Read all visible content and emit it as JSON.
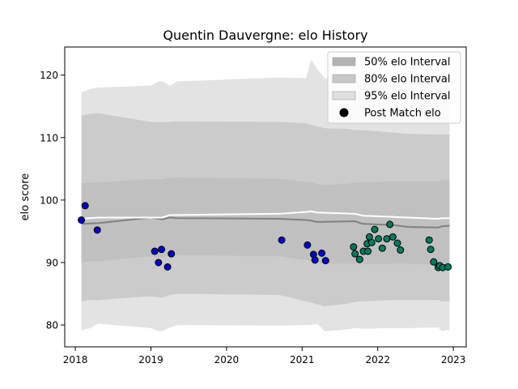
{
  "chart_data": {
    "type": "scatter",
    "title": "Quentin Dauvergne: elo History",
    "xlabel": "",
    "ylabel": "elo score",
    "xlim": [
      2017.86,
      2023.17
    ],
    "ylim": [
      76.5,
      124.5
    ],
    "x_ticks": [
      2018,
      2019,
      2020,
      2021,
      2022,
      2023
    ],
    "x_tick_labels": [
      "2018",
      "2019",
      "2020",
      "2021",
      "2022",
      "2023"
    ],
    "y_ticks": [
      80,
      90,
      100,
      110,
      120
    ],
    "y_tick_labels": [
      "80",
      "90",
      "100",
      "110",
      "120"
    ],
    "grid": false,
    "legend_position": "top-right",
    "legend": [
      {
        "label": "50% elo Interval",
        "kind": "patch",
        "color": "#b3b3b3"
      },
      {
        "label": "80% elo Interval",
        "kind": "patch",
        "color": "#c8c8c8"
      },
      {
        "label": "95% elo Interval",
        "kind": "patch",
        "color": "#e0e0e0"
      },
      {
        "label": "Post Match elo",
        "kind": "marker",
        "color": "#000000"
      }
    ],
    "bands": [
      {
        "name": "95% elo Interval",
        "color": "#e3e3e3",
        "x": [
          2018.08,
          2018.2,
          2018.3,
          2019.0,
          2019.1,
          2019.15,
          2019.25,
          2019.35,
          2020.7,
          2021.05,
          2021.12,
          2021.2,
          2021.3,
          2021.6,
          2021.7,
          2021.8,
          2022.2,
          2022.4,
          2022.8,
          2022.85,
          2022.9,
          2022.95
        ],
        "upper": [
          117.2,
          117.8,
          118.0,
          118.3,
          119.0,
          119.0,
          118.3,
          119.0,
          119.6,
          119.5,
          122.5,
          121.0,
          119.5,
          119.4,
          119.2,
          119.0,
          119.2,
          119.2,
          118.8,
          118.8,
          118.6,
          118.6
        ],
        "lower": [
          79.2,
          79.5,
          80.2,
          79.5,
          79.0,
          79.0,
          79.6,
          80.0,
          79.9,
          80.0,
          80.0,
          80.2,
          79.0,
          79.3,
          79.5,
          79.4,
          79.5,
          79.5,
          79.6,
          79.0,
          79.2,
          79.2
        ]
      },
      {
        "name": "80% elo Interval",
        "color": "#cbcbcb",
        "x": [
          2018.08,
          2018.2,
          2018.3,
          2019.0,
          2019.1,
          2019.15,
          2019.25,
          2019.35,
          2020.7,
          2021.05,
          2021.12,
          2021.2,
          2021.3,
          2021.6,
          2021.7,
          2021.8,
          2022.2,
          2022.4,
          2022.8,
          2022.85,
          2022.9,
          2022.95
        ],
        "upper": [
          113.5,
          113.8,
          113.9,
          112.5,
          112.5,
          112.5,
          112.5,
          112.6,
          112.5,
          112.3,
          112.0,
          111.8,
          111.5,
          111.4,
          111.2,
          111.2,
          110.8,
          110.6,
          110.5,
          110.5,
          110.5,
          110.5
        ],
        "lower": [
          83.8,
          84.0,
          84.0,
          84.6,
          84.4,
          84.4,
          84.8,
          85.0,
          84.8,
          83.8,
          83.6,
          83.3,
          83.0,
          83.4,
          83.7,
          83.8,
          84.0,
          84.0,
          84.0,
          83.8,
          83.8,
          83.8
        ]
      },
      {
        "name": "50% elo Interval",
        "color": "#c0c0c0",
        "x": [
          2018.08,
          2018.2,
          2018.3,
          2019.0,
          2019.1,
          2019.15,
          2019.25,
          2019.35,
          2020.7,
          2021.05,
          2021.12,
          2021.2,
          2021.3,
          2021.6,
          2021.7,
          2021.8,
          2022.2,
          2022.4,
          2022.8,
          2022.85,
          2022.9,
          2022.95
        ],
        "upper": [
          102.7,
          102.8,
          102.8,
          103.4,
          103.3,
          103.3,
          103.6,
          103.6,
          103.4,
          102.9,
          102.8,
          102.6,
          102.4,
          102.6,
          102.8,
          102.8,
          103.0,
          103.0,
          103.0,
          103.2,
          103.2,
          103.2
        ],
        "lower": [
          90.0,
          90.2,
          90.2,
          91.0,
          90.8,
          90.8,
          91.2,
          91.2,
          91.0,
          90.4,
          90.2,
          90.0,
          89.8,
          89.8,
          89.8,
          89.7,
          89.8,
          89.8,
          89.6,
          89.6,
          89.5,
          89.5
        ]
      }
    ],
    "lines": [
      {
        "name": "elo mean",
        "color": "#808080",
        "x": [
          2018.08,
          2018.3,
          2019.0,
          2019.15,
          2019.25,
          2019.35,
          2020.7,
          2021.05,
          2021.12,
          2021.2,
          2021.7,
          2021.8,
          2022.2,
          2022.4,
          2022.8,
          2022.85,
          2022.95
        ],
        "y": [
          96.2,
          96.3,
          97.2,
          96.9,
          97.2,
          97.1,
          97.0,
          96.8,
          96.7,
          96.5,
          96.6,
          96.2,
          96.0,
          95.7,
          95.6,
          95.8,
          95.9
        ]
      },
      {
        "name": "elo median",
        "color": "#ffffff",
        "x": [
          2018.08,
          2018.3,
          2019.0,
          2019.15,
          2019.25,
          2019.35,
          2020.7,
          2021.05,
          2021.12,
          2021.2,
          2021.7,
          2021.8,
          2022.2,
          2022.4,
          2022.8,
          2022.85,
          2022.95
        ],
        "y": [
          97.0,
          97.2,
          97.2,
          97.2,
          97.6,
          97.6,
          97.8,
          98.1,
          98.2,
          98.0,
          97.8,
          97.5,
          97.3,
          97.2,
          97.0,
          97.1,
          97.1
        ]
      }
    ],
    "series": [
      {
        "name": "Post Match elo",
        "color": "#0000cc",
        "x": [
          2018.08,
          2018.13,
          2018.29,
          2019.05,
          2019.1,
          2019.14,
          2019.22,
          2019.27,
          2020.73,
          2021.07,
          2021.15,
          2021.17,
          2021.26,
          2021.31
        ],
        "y": [
          96.8,
          99.1,
          95.2,
          91.8,
          90.0,
          92.1,
          89.3,
          91.4,
          93.6,
          92.8,
          91.3,
          90.4,
          91.5,
          90.3
        ]
      },
      {
        "name": "Post Match elo",
        "color": "#007a5e",
        "x": [
          2021.68,
          2021.7,
          2021.76,
          2021.81,
          2021.86,
          2021.87,
          2021.89,
          2021.92,
          2021.96,
          2022.01,
          2022.06,
          2022.12,
          2022.16,
          2022.2,
          2022.26,
          2022.3,
          2022.68,
          2022.7,
          2022.74,
          2022.8,
          2022.82,
          2022.86,
          2022.93
        ],
        "y": [
          92.5,
          91.4,
          90.5,
          91.8,
          93.0,
          91.8,
          94.1,
          93.2,
          95.3,
          93.8,
          92.3,
          93.8,
          96.1,
          94.1,
          93.1,
          92.0,
          93.6,
          92.1,
          90.1,
          89.2,
          89.5,
          89.2,
          89.3
        ]
      }
    ]
  }
}
